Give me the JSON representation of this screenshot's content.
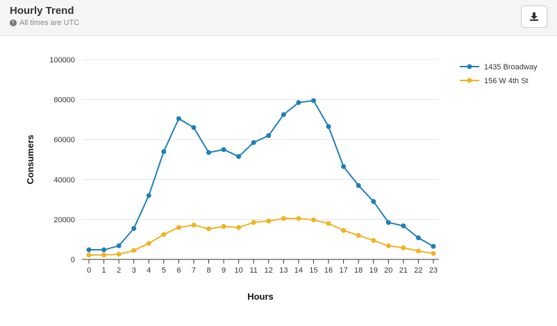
{
  "header": {
    "title": "Hourly Trend",
    "subtitle": "All times are UTC",
    "download_icon": "download-icon"
  },
  "colors": {
    "series_1": "#1f7fb6",
    "series_2": "#f0b323",
    "grid": "#e5e5e5"
  },
  "chart_data": {
    "type": "line",
    "title": "",
    "xlabel": "Hours",
    "ylabel": "Consumers",
    "x": [
      0,
      1,
      2,
      3,
      4,
      5,
      6,
      7,
      8,
      9,
      10,
      11,
      12,
      13,
      14,
      15,
      16,
      17,
      18,
      19,
      20,
      21,
      22,
      23
    ],
    "ylim": [
      0,
      100000
    ],
    "yticks": [
      "0",
      "20000",
      "40000",
      "60000",
      "80000",
      "100000"
    ],
    "grid": true,
    "legend_position": "top-right",
    "series": [
      {
        "name": "1435 Broadway",
        "color": "#1f7fb6",
        "values": [
          4800,
          4800,
          6800,
          15500,
          32000,
          54000,
          70500,
          66000,
          53500,
          55000,
          51500,
          58500,
          62000,
          72500,
          78500,
          79500,
          66500,
          46500,
          37000,
          29000,
          18500,
          16800,
          10800,
          6500
        ]
      },
      {
        "name": "156 W 4th St",
        "color": "#f0b323",
        "values": [
          2200,
          2200,
          2600,
          4500,
          8000,
          12500,
          16000,
          17200,
          15300,
          16500,
          16000,
          18500,
          19200,
          20500,
          20500,
          19800,
          18000,
          14500,
          12000,
          9500,
          6800,
          5800,
          4200,
          3000
        ]
      }
    ]
  }
}
